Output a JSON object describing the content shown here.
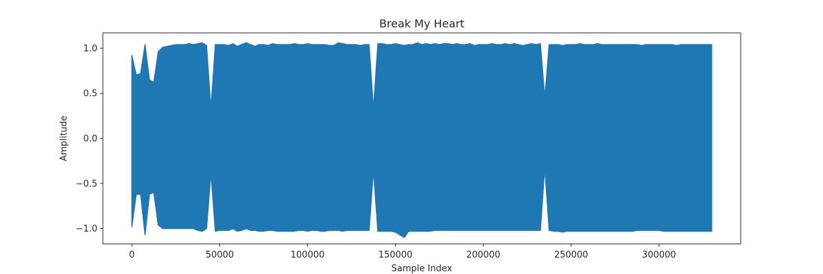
{
  "chart_data": {
    "type": "line",
    "title": "Break My Heart",
    "xlabel": "Sample Index",
    "ylabel": "Amplitude",
    "xlim": [
      -16500,
      346500
    ],
    "ylim": [
      -1.17,
      1.17
    ],
    "x_ticks": [
      0,
      50000,
      100000,
      150000,
      200000,
      250000,
      300000
    ],
    "x_tick_labels": [
      "0",
      "50000",
      "100000",
      "150000",
      "200000",
      "250000",
      "300000"
    ],
    "y_ticks": [
      -1.0,
      -0.5,
      0.0,
      0.5,
      1.0
    ],
    "y_tick_labels": [
      "−1.0",
      "−0.5",
      "0.0",
      "0.5",
      "1.0"
    ],
    "grid": false,
    "legend": false,
    "series": [
      {
        "color": "#1f77b4",
        "x_range": [
          0,
          331000
        ],
        "envelope_step": 2500,
        "max": [
          0.92,
          0.7,
          0.72,
          1.04,
          0.65,
          0.62,
          0.96,
          1.01,
          1.02,
          1.03,
          1.04,
          1.04,
          1.04,
          1.05,
          1.04,
          1.05,
          1.06,
          1.03,
          0.33,
          1.04,
          1.04,
          1.04,
          1.03,
          1.05,
          1.02,
          1.04,
          1.06,
          1.04,
          1.02,
          1.04,
          1.04,
          1.03,
          1.05,
          1.04,
          1.04,
          1.04,
          1.04,
          1.05,
          1.04,
          1.04,
          1.05,
          1.04,
          1.04,
          1.04,
          1.04,
          1.03,
          1.03,
          1.06,
          1.05,
          1.04,
          1.04,
          1.04,
          1.03,
          1.04,
          1.04,
          0.32,
          1.05,
          1.05,
          1.04,
          1.04,
          1.05,
          1.04,
          1.03,
          1.04,
          1.04,
          1.06,
          1.04,
          1.05,
          1.04,
          1.05,
          1.04,
          1.05,
          1.05,
          1.04,
          1.05,
          1.04,
          1.04,
          1.05,
          1.03,
          1.04,
          1.04,
          1.04,
          1.05,
          1.04,
          1.04,
          1.05,
          1.04,
          1.05,
          1.04,
          1.03,
          1.04,
          1.05,
          1.04,
          1.05,
          0.45,
          1.04,
          1.04,
          1.04,
          1.03,
          1.04,
          1.04,
          1.04,
          1.05,
          1.04,
          1.04,
          1.04,
          1.05,
          1.04,
          1.04,
          1.04,
          1.04,
          1.04,
          1.04,
          1.04,
          1.04,
          1.04,
          1.03,
          1.04,
          1.04,
          1.04,
          1.04,
          1.04,
          1.04,
          1.04,
          1.03,
          1.04,
          1.04,
          1.04,
          1.04,
          1.04,
          1.04,
          1.04,
          1.04
        ],
        "min": [
          -0.98,
          -0.62,
          -0.62,
          -1.07,
          -0.62,
          -0.6,
          -0.96,
          -1.0,
          -1.0,
          -1.0,
          -1.0,
          -1.0,
          -1.0,
          -1.0,
          -1.0,
          -1.02,
          -1.03,
          -1.0,
          -0.38,
          -1.03,
          -1.02,
          -1.02,
          -1.02,
          -1.0,
          -1.03,
          -1.02,
          -1.0,
          -1.02,
          -1.02,
          -1.03,
          -1.03,
          -1.02,
          -1.02,
          -1.03,
          -1.03,
          -1.03,
          -1.03,
          -1.03,
          -1.02,
          -1.02,
          -1.03,
          -1.02,
          -1.02,
          -1.03,
          -1.03,
          -1.02,
          -1.02,
          -1.02,
          -1.03,
          -1.02,
          -1.02,
          -1.02,
          -1.02,
          -1.02,
          -1.02,
          -0.35,
          -1.03,
          -1.03,
          -1.03,
          -1.03,
          -1.04,
          -1.07,
          -1.1,
          -1.03,
          -1.03,
          -1.03,
          -1.03,
          -1.03,
          -1.03,
          -1.02,
          -1.02,
          -1.02,
          -1.02,
          -1.02,
          -1.02,
          -1.02,
          -1.02,
          -1.02,
          -1.02,
          -1.02,
          -1.02,
          -1.02,
          -1.02,
          -1.02,
          -1.02,
          -1.02,
          -1.02,
          -1.02,
          -1.02,
          -1.02,
          -1.02,
          -1.02,
          -1.02,
          -1.02,
          -0.32,
          -1.02,
          -1.03,
          -1.03,
          -1.04,
          -1.03,
          -1.03,
          -1.03,
          -1.03,
          -1.03,
          -1.03,
          -1.03,
          -1.03,
          -1.03,
          -1.03,
          -1.03,
          -1.03,
          -1.03,
          -1.03,
          -1.03,
          -1.03,
          -1.02,
          -1.02,
          -1.02,
          -1.02,
          -1.02,
          -1.02,
          -1.03,
          -1.03,
          -1.03,
          -1.03,
          -1.03,
          -1.03,
          -1.03,
          -1.03,
          -1.03,
          -1.03,
          -1.03,
          -1.03
        ]
      }
    ]
  }
}
